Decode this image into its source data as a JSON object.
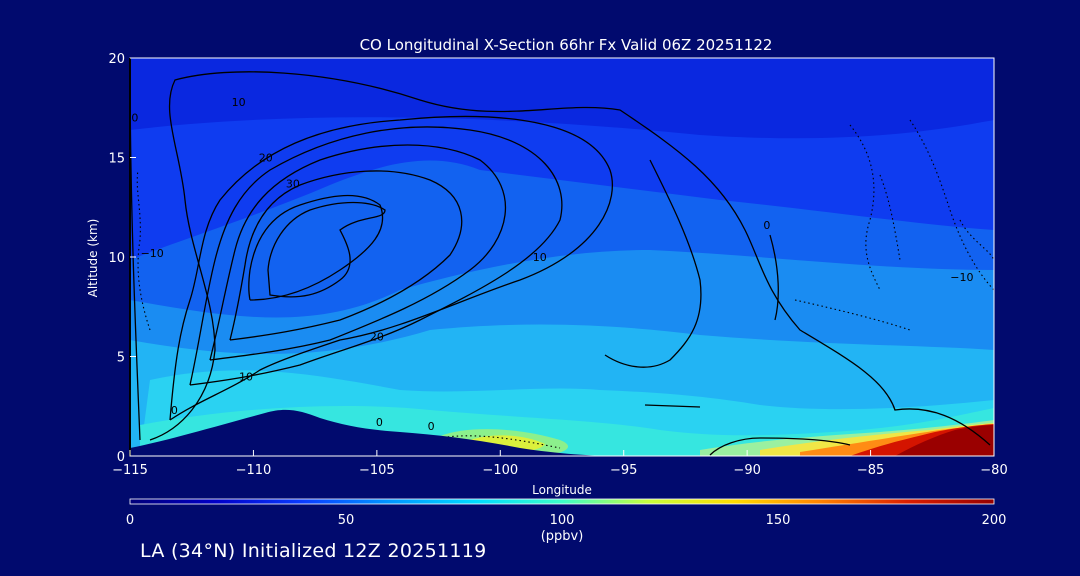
{
  "chart_data": {
    "type": "heatmap",
    "title": "CO Longitudinal X-Section 66hr  Fx Valid 06Z 20251122",
    "xlabel": "Longitude",
    "ylabel": "Altitude (km)",
    "xlim": [
      -115,
      -80
    ],
    "ylim": [
      0,
      20
    ],
    "x_ticks": [
      -115,
      -110,
      -105,
      -100,
      -95,
      -90,
      -85,
      -80
    ],
    "x_tick_labels": [
      "−115",
      "−110",
      "−105",
      "−100",
      "−95",
      "−90",
      "−85",
      "−80"
    ],
    "y_ticks": [
      0,
      5,
      10,
      15,
      20
    ],
    "colorbar": {
      "label": "(ppbv)",
      "range": [
        0,
        200
      ],
      "ticks": [
        0,
        50,
        100,
        150,
        200
      ],
      "colors": [
        "#000078",
        "#0000c8",
        "#0a3cff",
        "#0096ff",
        "#00dcff",
        "#3cffc8",
        "#c8ff3c",
        "#ffdc00",
        "#ff8200",
        "#dc1e00",
        "#960000"
      ]
    },
    "contour_labels": [
      {
        "text": "10",
        "lon": -110.6,
        "alt": 17.6
      },
      {
        "text": "20",
        "lon": -109.5,
        "alt": 14.8
      },
      {
        "text": "30",
        "lon": -108.4,
        "alt": 13.5
      },
      {
        "text": "20",
        "lon": -105.0,
        "alt": 5.8
      },
      {
        "text": "10",
        "lon": -110.3,
        "alt": 3.8
      },
      {
        "text": "0",
        "lon": -113.2,
        "alt": 2.1
      },
      {
        "text": "0",
        "lon": -114.8,
        "alt": 16.8
      },
      {
        "text": "−10",
        "lon": -114.1,
        "alt": 10.0
      },
      {
        "text": "0",
        "lon": -104.9,
        "alt": 1.5
      },
      {
        "text": "0",
        "lon": -102.8,
        "alt": 1.3
      },
      {
        "text": "10",
        "lon": -98.4,
        "alt": 9.8
      },
      {
        "text": "0",
        "lon": -89.2,
        "alt": 11.4
      },
      {
        "text": "−10",
        "lon": -81.3,
        "alt": 8.8
      }
    ]
  },
  "footer": "LA (34°N) Initialized 12Z 20251119"
}
